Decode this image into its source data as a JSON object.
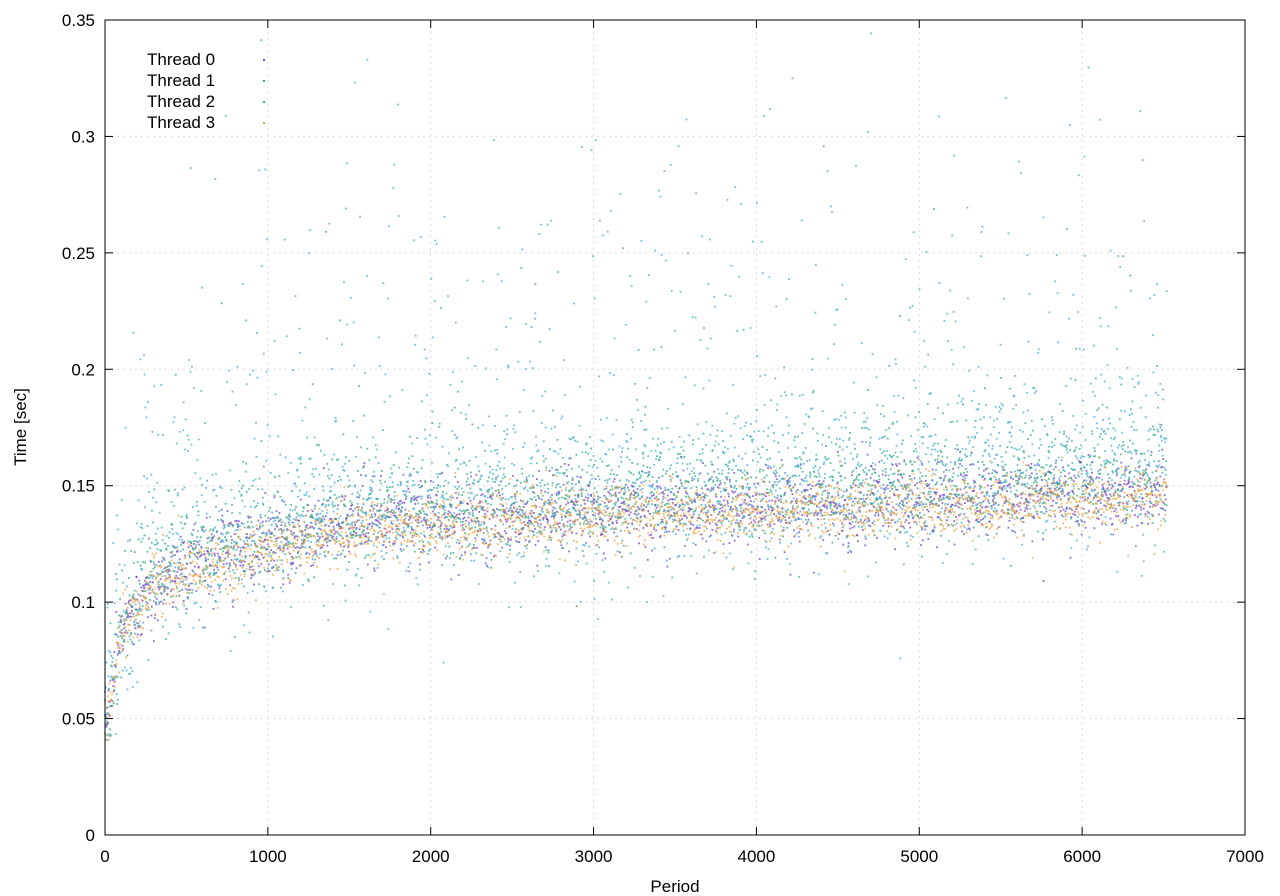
{
  "chart_data": {
    "type": "scatter",
    "title": "",
    "xlabel": "Period",
    "ylabel": "Time [sec]",
    "xlim": [
      0,
      7000
    ],
    "ylim": [
      0,
      0.35
    ],
    "xticks": [
      "0",
      "1000",
      "2000",
      "3000",
      "4000",
      "5000",
      "6000",
      "7000"
    ],
    "yticks": [
      "0",
      "0.05",
      "0.1",
      "0.15",
      "0.2",
      "0.25",
      "0.3",
      "0.35"
    ],
    "grid": true,
    "legend_position": "top-left",
    "x_range_of_points": [
      0,
      6520
    ],
    "series": [
      {
        "name": "Thread 0",
        "color": "#6b3fc9",
        "trend": [
          {
            "x": 0,
            "y": 0.045
          },
          {
            "x": 100,
            "y": 0.085
          },
          {
            "x": 300,
            "y": 0.108
          },
          {
            "x": 600,
            "y": 0.117
          },
          {
            "x": 1000,
            "y": 0.124
          },
          {
            "x": 1500,
            "y": 0.131
          },
          {
            "x": 2000,
            "y": 0.134
          },
          {
            "x": 3000,
            "y": 0.138
          },
          {
            "x": 4000,
            "y": 0.14
          },
          {
            "x": 5000,
            "y": 0.142
          },
          {
            "x": 6000,
            "y": 0.145
          },
          {
            "x": 6520,
            "y": 0.146
          }
        ]
      },
      {
        "name": "Thread 1",
        "color": "#2aa889",
        "trend": [
          {
            "x": 0,
            "y": 0.046
          },
          {
            "x": 100,
            "y": 0.087
          },
          {
            "x": 300,
            "y": 0.11
          },
          {
            "x": 600,
            "y": 0.119
          },
          {
            "x": 1000,
            "y": 0.127
          },
          {
            "x": 1500,
            "y": 0.134
          },
          {
            "x": 2000,
            "y": 0.138
          },
          {
            "x": 3000,
            "y": 0.142
          },
          {
            "x": 4000,
            "y": 0.145
          },
          {
            "x": 5000,
            "y": 0.148
          },
          {
            "x": 6000,
            "y": 0.152
          },
          {
            "x": 6520,
            "y": 0.154
          }
        ]
      },
      {
        "name": "Thread 2",
        "color": "#3ca9d6",
        "trend": [
          {
            "x": 0,
            "y": 0.047
          },
          {
            "x": 100,
            "y": 0.09
          },
          {
            "x": 300,
            "y": 0.113
          },
          {
            "x": 600,
            "y": 0.122
          },
          {
            "x": 1000,
            "y": 0.13
          },
          {
            "x": 1500,
            "y": 0.138
          },
          {
            "x": 2000,
            "y": 0.143
          },
          {
            "x": 3000,
            "y": 0.147
          },
          {
            "x": 4000,
            "y": 0.15
          },
          {
            "x": 5000,
            "y": 0.153
          },
          {
            "x": 6000,
            "y": 0.158
          },
          {
            "x": 6520,
            "y": 0.162
          }
        ]
      },
      {
        "name": "Thread 3",
        "color": "#e8a640",
        "trend": [
          {
            "x": 0,
            "y": 0.044
          },
          {
            "x": 100,
            "y": 0.085
          },
          {
            "x": 300,
            "y": 0.107
          },
          {
            "x": 600,
            "y": 0.115
          },
          {
            "x": 1000,
            "y": 0.122
          },
          {
            "x": 1500,
            "y": 0.129
          },
          {
            "x": 2000,
            "y": 0.132
          },
          {
            "x": 3000,
            "y": 0.136
          },
          {
            "x": 4000,
            "y": 0.138
          },
          {
            "x": 5000,
            "y": 0.14
          },
          {
            "x": 6000,
            "y": 0.143
          },
          {
            "x": 6520,
            "y": 0.145
          }
        ]
      }
    ]
  }
}
